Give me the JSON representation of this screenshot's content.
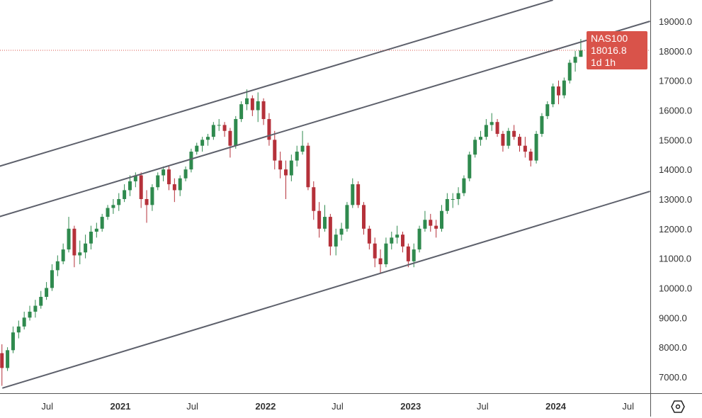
{
  "chart_data": {
    "type": "candlestick",
    "symbol": "NAS100",
    "last_price": "18016.8",
    "countdown": "1d 1h",
    "candle_start": "2020-03-09",
    "candle_interval_weeks": 2,
    "ohlc": [
      [
        7800,
        8100,
        6700,
        7300
      ],
      [
        7300,
        8000,
        7200,
        7900
      ],
      [
        7900,
        8700,
        7800,
        8500
      ],
      [
        8500,
        8900,
        8300,
        8700
      ],
      [
        8700,
        9200,
        8600,
        9000
      ],
      [
        9000,
        9400,
        8900,
        9200
      ],
      [
        9200,
        9600,
        9000,
        9400
      ],
      [
        9400,
        9900,
        9300,
        9700
      ],
      [
        9700,
        10200,
        9600,
        10000
      ],
      [
        10000,
        10800,
        9900,
        10600
      ],
      [
        10600,
        11100,
        10400,
        10900
      ],
      [
        10900,
        11500,
        10800,
        11300
      ],
      [
        11300,
        12400,
        11200,
        12000
      ],
      [
        12000,
        12100,
        10700,
        11100
      ],
      [
        11100,
        11600,
        10800,
        11200
      ],
      [
        11200,
        11800,
        11000,
        11500
      ],
      [
        11500,
        12100,
        11300,
        11900
      ],
      [
        11900,
        12200,
        11700,
        12000
      ],
      [
        12000,
        12500,
        11900,
        12400
      ],
      [
        12400,
        12800,
        12300,
        12700
      ],
      [
        12700,
        13000,
        12500,
        12800
      ],
      [
        12800,
        13200,
        12600,
        13000
      ],
      [
        13000,
        13500,
        12900,
        13300
      ],
      [
        13300,
        13800,
        13100,
        13600
      ],
      [
        13600,
        13900,
        13400,
        13800
      ],
      [
        13800,
        13900,
        12700,
        13000
      ],
      [
        13000,
        13300,
        12200,
        12800
      ],
      [
        12800,
        13500,
        12600,
        13400
      ],
      [
        13400,
        13900,
        13300,
        13800
      ],
      [
        13800,
        14100,
        13600,
        14000
      ],
      [
        14000,
        14100,
        13300,
        13500
      ],
      [
        13500,
        13700,
        12900,
        13300
      ],
      [
        13300,
        13800,
        13100,
        13700
      ],
      [
        13700,
        14100,
        13600,
        14000
      ],
      [
        14000,
        14700,
        13900,
        14600
      ],
      [
        14600,
        14900,
        14500,
        14800
      ],
      [
        14800,
        15100,
        14600,
        15000
      ],
      [
        15000,
        15200,
        14800,
        15100
      ],
      [
        15100,
        15600,
        15000,
        15500
      ],
      [
        15500,
        15700,
        15300,
        15500
      ],
      [
        15500,
        15600,
        15100,
        15300
      ],
      [
        15300,
        15400,
        14400,
        14800
      ],
      [
        14800,
        15800,
        14700,
        15700
      ],
      [
        15700,
        16300,
        15600,
        16200
      ],
      [
        16200,
        16700,
        16000,
        16400
      ],
      [
        16400,
        16500,
        15800,
        16000
      ],
      [
        16000,
        16600,
        15600,
        16300
      ],
      [
        16300,
        16400,
        15500,
        15700
      ],
      [
        15700,
        15900,
        14800,
        15000
      ],
      [
        15000,
        15300,
        14000,
        14300
      ],
      [
        14300,
        14600,
        13700,
        14000
      ],
      [
        14000,
        14300,
        13000,
        13800
      ],
      [
        13800,
        14500,
        13600,
        14300
      ],
      [
        14300,
        14800,
        14100,
        14600
      ],
      [
        14600,
        15300,
        14500,
        14800
      ],
      [
        14800,
        14900,
        13300,
        13400
      ],
      [
        13400,
        13600,
        12300,
        12600
      ],
      [
        12600,
        12900,
        11700,
        12000
      ],
      [
        12000,
        12800,
        11900,
        12400
      ],
      [
        12400,
        12500,
        11100,
        11400
      ],
      [
        11400,
        12000,
        11100,
        11800
      ],
      [
        11800,
        12200,
        11600,
        12000
      ],
      [
        12000,
        12900,
        11900,
        12800
      ],
      [
        12800,
        13700,
        12700,
        13500
      ],
      [
        13500,
        13600,
        12700,
        12800
      ],
      [
        12800,
        12900,
        11800,
        12000
      ],
      [
        12000,
        12100,
        11300,
        11500
      ],
      [
        11500,
        11700,
        10700,
        11000
      ],
      [
        11000,
        11300,
        10500,
        10800
      ],
      [
        10800,
        11700,
        10700,
        11500
      ],
      [
        11500,
        11900,
        11300,
        11700
      ],
      [
        11700,
        12100,
        11500,
        11800
      ],
      [
        11800,
        11900,
        11200,
        11400
      ],
      [
        11400,
        11500,
        10700,
        10900
      ],
      [
        10900,
        11500,
        10700,
        11300
      ],
      [
        11300,
        12100,
        11200,
        12000
      ],
      [
        12000,
        12600,
        11900,
        12300
      ],
      [
        12300,
        12500,
        11900,
        12100
      ],
      [
        12100,
        12300,
        11700,
        12000
      ],
      [
        12000,
        12800,
        11900,
        12600
      ],
      [
        12600,
        13200,
        12500,
        13000
      ],
      [
        13000,
        13200,
        12700,
        13000
      ],
      [
        13000,
        13400,
        12800,
        13200
      ],
      [
        13200,
        13800,
        13100,
        13700
      ],
      [
        13700,
        14600,
        13600,
        14500
      ],
      [
        14500,
        15100,
        14400,
        15000
      ],
      [
        15000,
        15300,
        14800,
        15100
      ],
      [
        15100,
        15700,
        15000,
        15500
      ],
      [
        15500,
        15900,
        15300,
        15600
      ],
      [
        15600,
        15700,
        15100,
        15200
      ],
      [
        15200,
        15300,
        14600,
        14800
      ],
      [
        14800,
        15400,
        14700,
        15300
      ],
      [
        15300,
        15500,
        15000,
        15100
      ],
      [
        15100,
        15200,
        14600,
        14800
      ],
      [
        14800,
        15100,
        14400,
        14600
      ],
      [
        14600,
        14700,
        14100,
        14300
      ],
      [
        14300,
        15300,
        14200,
        15200
      ],
      [
        15200,
        15900,
        15100,
        15800
      ],
      [
        15800,
        16300,
        15700,
        16200
      ],
      [
        16200,
        16900,
        16100,
        16800
      ],
      [
        16800,
        17000,
        16200,
        16500
      ],
      [
        16500,
        17100,
        16400,
        17000
      ],
      [
        17000,
        17700,
        16900,
        17600
      ],
      [
        17600,
        18000,
        17300,
        17800
      ],
      [
        17800,
        18400,
        17800,
        18016.8
      ]
    ],
    "trendlines": [
      {
        "from": [
          "2020-03-01",
          14100
        ],
        "to": [
          "2023-12-25",
          19717
        ]
      },
      {
        "from": [
          "2020-03-01",
          12400
        ],
        "to": [
          "2024-08-25",
          19000
        ]
      },
      {
        "from": [
          "2020-03-10",
          6620
        ],
        "to": [
          "2024-08-25",
          13260
        ]
      }
    ],
    "y_ticks": [
      "7000.0",
      "8000.0",
      "9000.0",
      "10000.0",
      "11000.0",
      "12000.0",
      "13000.0",
      "14000.0",
      "15000.0",
      "16000.0",
      "17000.0",
      "18000.0",
      "19000.0"
    ],
    "x_ticks": [
      {
        "label": "Jul",
        "date": "2020-07-01",
        "year": false
      },
      {
        "label": "2021",
        "date": "2021-01-01",
        "year": true
      },
      {
        "label": "Jul",
        "date": "2021-07-01",
        "year": false
      },
      {
        "label": "2022",
        "date": "2022-01-01",
        "year": true
      },
      {
        "label": "Jul",
        "date": "2022-07-01",
        "year": false
      },
      {
        "label": "2023",
        "date": "2023-01-01",
        "year": true
      },
      {
        "label": "Jul",
        "date": "2023-07-01",
        "year": false
      },
      {
        "label": "2024",
        "date": "2024-01-01",
        "year": true
      },
      {
        "label": "Jul",
        "date": "2024-07-01",
        "year": false
      }
    ],
    "ylim": [
      7000,
      19000
    ],
    "grid": false,
    "colors": {
      "up": "#2f8a4e",
      "down": "#b5313a",
      "trendline": "#5d606b",
      "label": "#d9534a"
    }
  },
  "icons": {
    "settings": "settings-hexagon-icon"
  }
}
